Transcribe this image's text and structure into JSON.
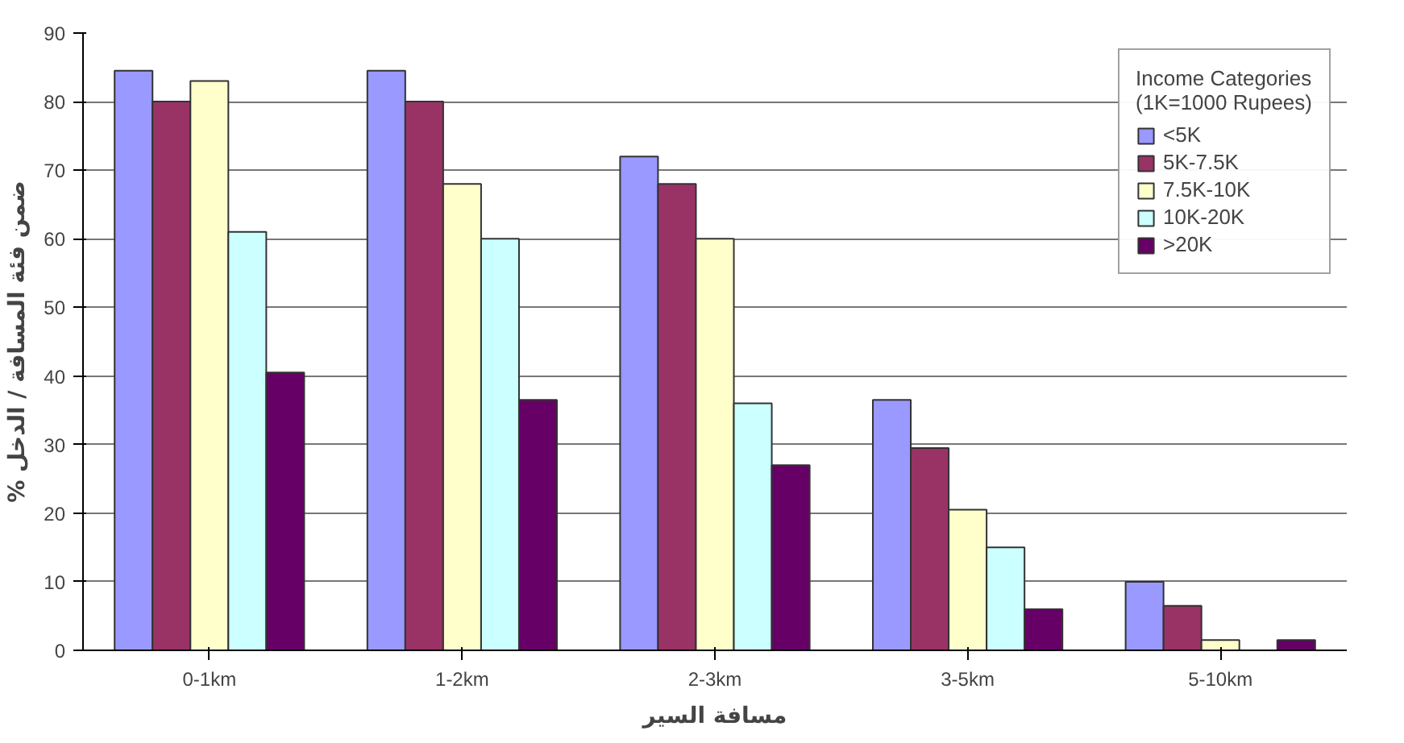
{
  "chart_data": {
    "type": "bar",
    "xlabel": "مسافة السير",
    "ylabel": "% ضمن فئة المسافة / الدخل",
    "legend_title": "Income Categories\n(1K=1000 Rupees)",
    "categories": [
      "0-1km",
      "1-2km",
      "2-3km",
      "3-5km",
      "5-10km"
    ],
    "series": [
      {
        "name": "<5K",
        "color": "#9999ff",
        "values": [
          84.5,
          84.5,
          72,
          36.5,
          10
        ]
      },
      {
        "name": "5K-7.5K",
        "color": "#993366",
        "values": [
          80,
          80,
          68,
          29.5,
          6.5
        ]
      },
      {
        "name": "7.5K-10K",
        "color": "#ffffcc",
        "values": [
          83,
          68,
          60,
          20.5,
          1.5
        ]
      },
      {
        "name": "10K-20K",
        "color": "#ccffff",
        "values": [
          61,
          60,
          36,
          15,
          null
        ]
      },
      {
        "name": ">20K",
        "color": "#660066",
        "values": [
          40.5,
          36.5,
          27,
          6,
          1.5
        ]
      }
    ],
    "ylim": [
      0,
      90
    ],
    "yticks": [
      0,
      10,
      20,
      30,
      40,
      50,
      60,
      70,
      80,
      90
    ],
    "grid": "y",
    "legend": "top right"
  }
}
